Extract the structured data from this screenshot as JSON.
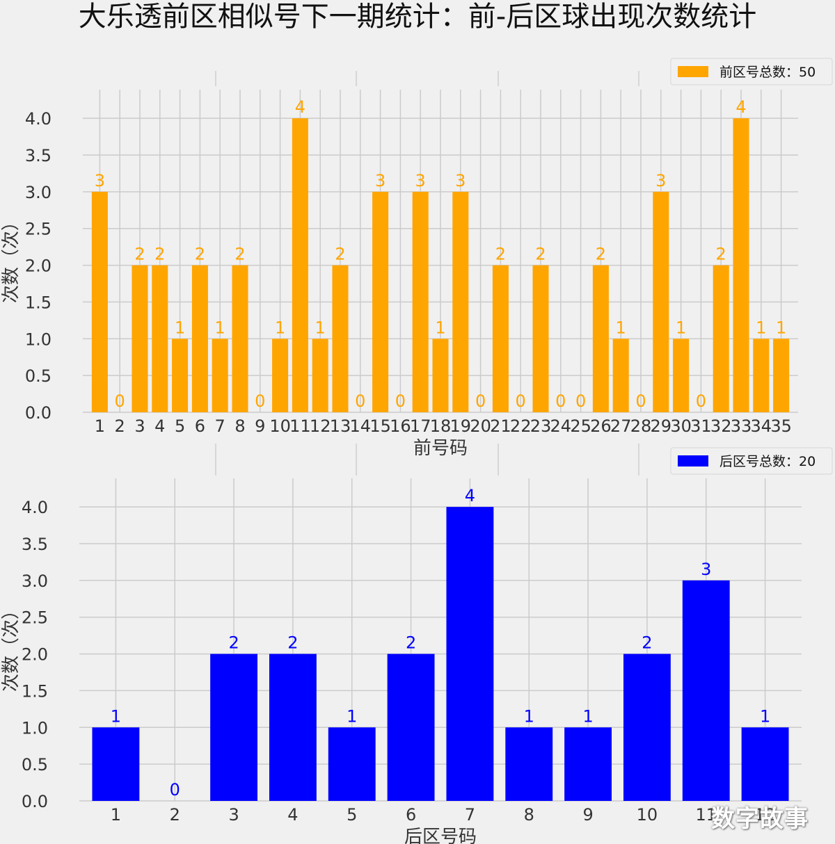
{
  "title": "大乐透前区相似号下一期统计：前-后区球出现次数统计",
  "watermark": "数字故事",
  "chart_data": [
    {
      "type": "bar",
      "color": "#ffa500",
      "xlabel": "前号码",
      "ylabel": "次数（次）",
      "legend": "前区号总数：50",
      "legend_position": "top-right",
      "grid": true,
      "ylim": [
        0,
        4.2
      ],
      "yticks": [
        "0.0",
        "0.5",
        "1.0",
        "1.5",
        "2.0",
        "2.5",
        "3.0",
        "3.5",
        "4.0"
      ],
      "categories": [
        "1",
        "2",
        "3",
        "4",
        "5",
        "6",
        "7",
        "8",
        "9",
        "10",
        "11",
        "12",
        "13",
        "14",
        "15",
        "16",
        "17",
        "18",
        "19",
        "20",
        "21",
        "22",
        "23",
        "24",
        "25",
        "26",
        "27",
        "28",
        "29",
        "30",
        "31",
        "32",
        "33",
        "34",
        "35"
      ],
      "values": [
        3,
        0,
        2,
        2,
        1,
        2,
        1,
        2,
        0,
        1,
        4,
        1,
        2,
        0,
        3,
        0,
        3,
        1,
        3,
        0,
        2,
        0,
        2,
        0,
        0,
        2,
        1,
        0,
        3,
        1,
        0,
        2,
        4,
        1,
        1
      ]
    },
    {
      "type": "bar",
      "color": "#0000ff",
      "xlabel": "后区号码",
      "ylabel": "次数（次）",
      "legend": "后区号总数：20",
      "legend_position": "top-right",
      "grid": true,
      "ylim": [
        0,
        4.2
      ],
      "yticks": [
        "0.0",
        "0.5",
        "1.0",
        "1.5",
        "2.0",
        "2.5",
        "3.0",
        "3.5",
        "4.0"
      ],
      "categories": [
        "1",
        "2",
        "3",
        "4",
        "5",
        "6",
        "7",
        "8",
        "9",
        "10",
        "11",
        "12"
      ],
      "values": [
        1,
        0,
        2,
        2,
        1,
        2,
        4,
        1,
        1,
        2,
        3,
        1
      ]
    }
  ]
}
